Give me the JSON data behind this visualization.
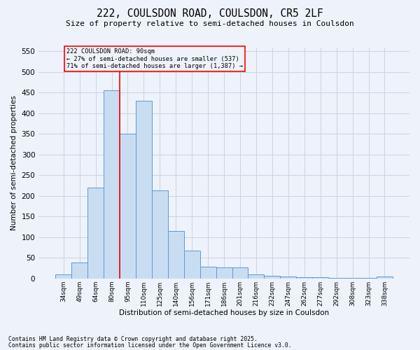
{
  "title_line1": "222, COULSDON ROAD, COULSDON, CR5 2LF",
  "title_line2": "Size of property relative to semi-detached houses in Coulsdon",
  "xlabel": "Distribution of semi-detached houses by size in Coulsdon",
  "ylabel": "Number of semi-detached properties",
  "categories": [
    "34sqm",
    "49sqm",
    "64sqm",
    "80sqm",
    "95sqm",
    "110sqm",
    "125sqm",
    "140sqm",
    "156sqm",
    "171sqm",
    "186sqm",
    "201sqm",
    "216sqm",
    "232sqm",
    "247sqm",
    "262sqm",
    "277sqm",
    "292sqm",
    "308sqm",
    "323sqm",
    "338sqm"
  ],
  "values": [
    10,
    38,
    220,
    456,
    350,
    430,
    213,
    115,
    68,
    28,
    27,
    27,
    9,
    6,
    4,
    3,
    3,
    2,
    1,
    1,
    4
  ],
  "bar_color": "#c9ddf2",
  "bar_edge_color": "#5b9bd5",
  "property_label": "222 COULSDON ROAD: 90sqm",
  "vline_x_index": 3.5,
  "annotation_smaller_pct": "27%",
  "annotation_smaller_n": "537",
  "annotation_larger_pct": "71%",
  "annotation_larger_n": "1,387",
  "ylim": [
    0,
    560
  ],
  "yticks": [
    0,
    50,
    100,
    150,
    200,
    250,
    300,
    350,
    400,
    450,
    500,
    550
  ],
  "footnote1": "Contains HM Land Registry data © Crown copyright and database right 2025.",
  "footnote2": "Contains public sector information licensed under the Open Government Licence v3.0.",
  "bg_color": "#eef2fa",
  "grid_color": "#c8d4e8"
}
